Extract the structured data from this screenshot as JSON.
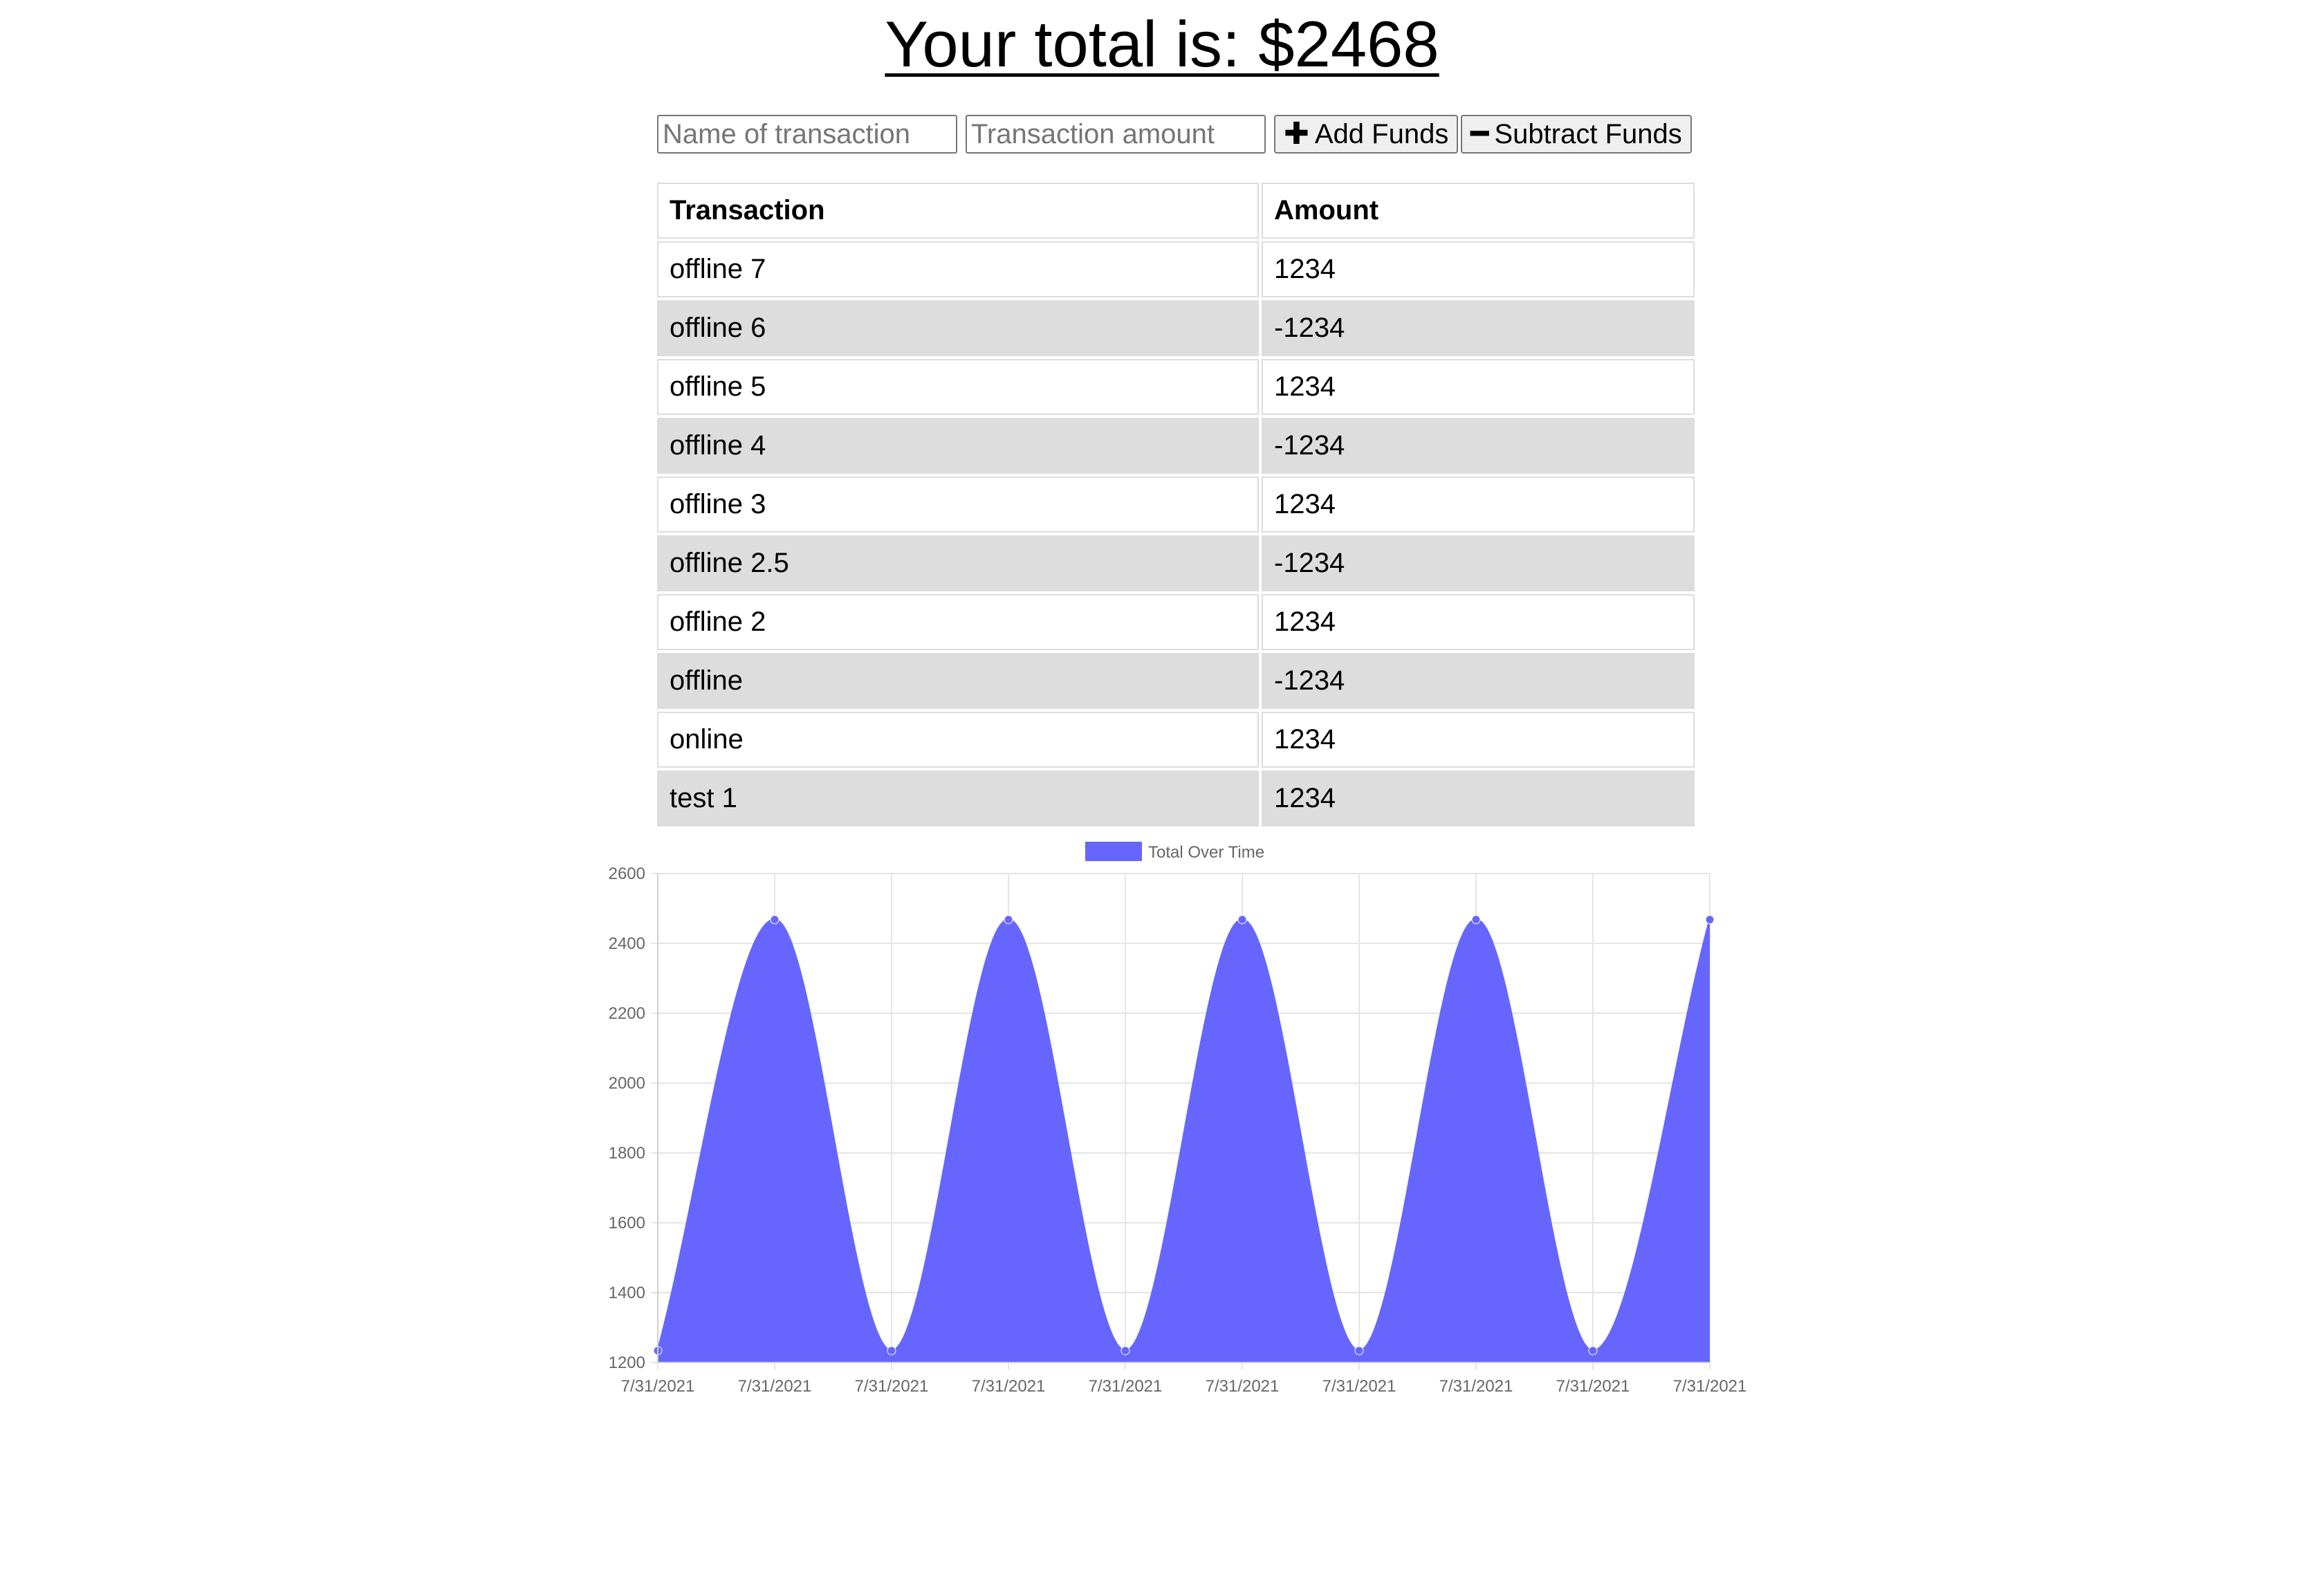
{
  "header": {
    "total_text": "Your total is: $2468"
  },
  "form": {
    "name_placeholder": "Name of transaction",
    "amount_placeholder": "Transaction amount",
    "add_label": "Add Funds",
    "subtract_label": "Subtract Funds",
    "add_icon": "plus-icon",
    "subtract_icon": "minus-icon"
  },
  "table": {
    "headers": [
      "Transaction",
      "Amount"
    ],
    "rows": [
      {
        "name": "offline 7",
        "amount": "1234"
      },
      {
        "name": "offline 6",
        "amount": "-1234"
      },
      {
        "name": "offline 5",
        "amount": "1234"
      },
      {
        "name": "offline 4",
        "amount": "-1234"
      },
      {
        "name": "offline 3",
        "amount": "1234"
      },
      {
        "name": "offline 2.5",
        "amount": "-1234"
      },
      {
        "name": "offline 2",
        "amount": "1234"
      },
      {
        "name": "offline",
        "amount": "-1234"
      },
      {
        "name": "online",
        "amount": "1234"
      },
      {
        "name": "test 1",
        "amount": "1234"
      }
    ],
    "shaded_color": "#dddddd"
  },
  "chart_data": {
    "type": "area",
    "title": "",
    "xlabel": "",
    "ylabel": "",
    "legend_position": "top-center",
    "grid": true,
    "x": [
      "7/31/2021",
      "7/31/2021",
      "7/31/2021",
      "7/31/2021",
      "7/31/2021",
      "7/31/2021",
      "7/31/2021",
      "7/31/2021",
      "7/31/2021",
      "7/31/2021"
    ],
    "ylim": [
      1200,
      2600
    ],
    "yticks": [
      1200,
      1400,
      1600,
      1800,
      2000,
      2200,
      2400,
      2600
    ],
    "series": [
      {
        "name": "Total Over Time",
        "values": [
          1234,
          2468,
          1234,
          2468,
          1234,
          2468,
          1234,
          2468,
          1234,
          2468
        ],
        "fill_color": "#6666ff",
        "line_color": "#6666ff"
      }
    ]
  }
}
